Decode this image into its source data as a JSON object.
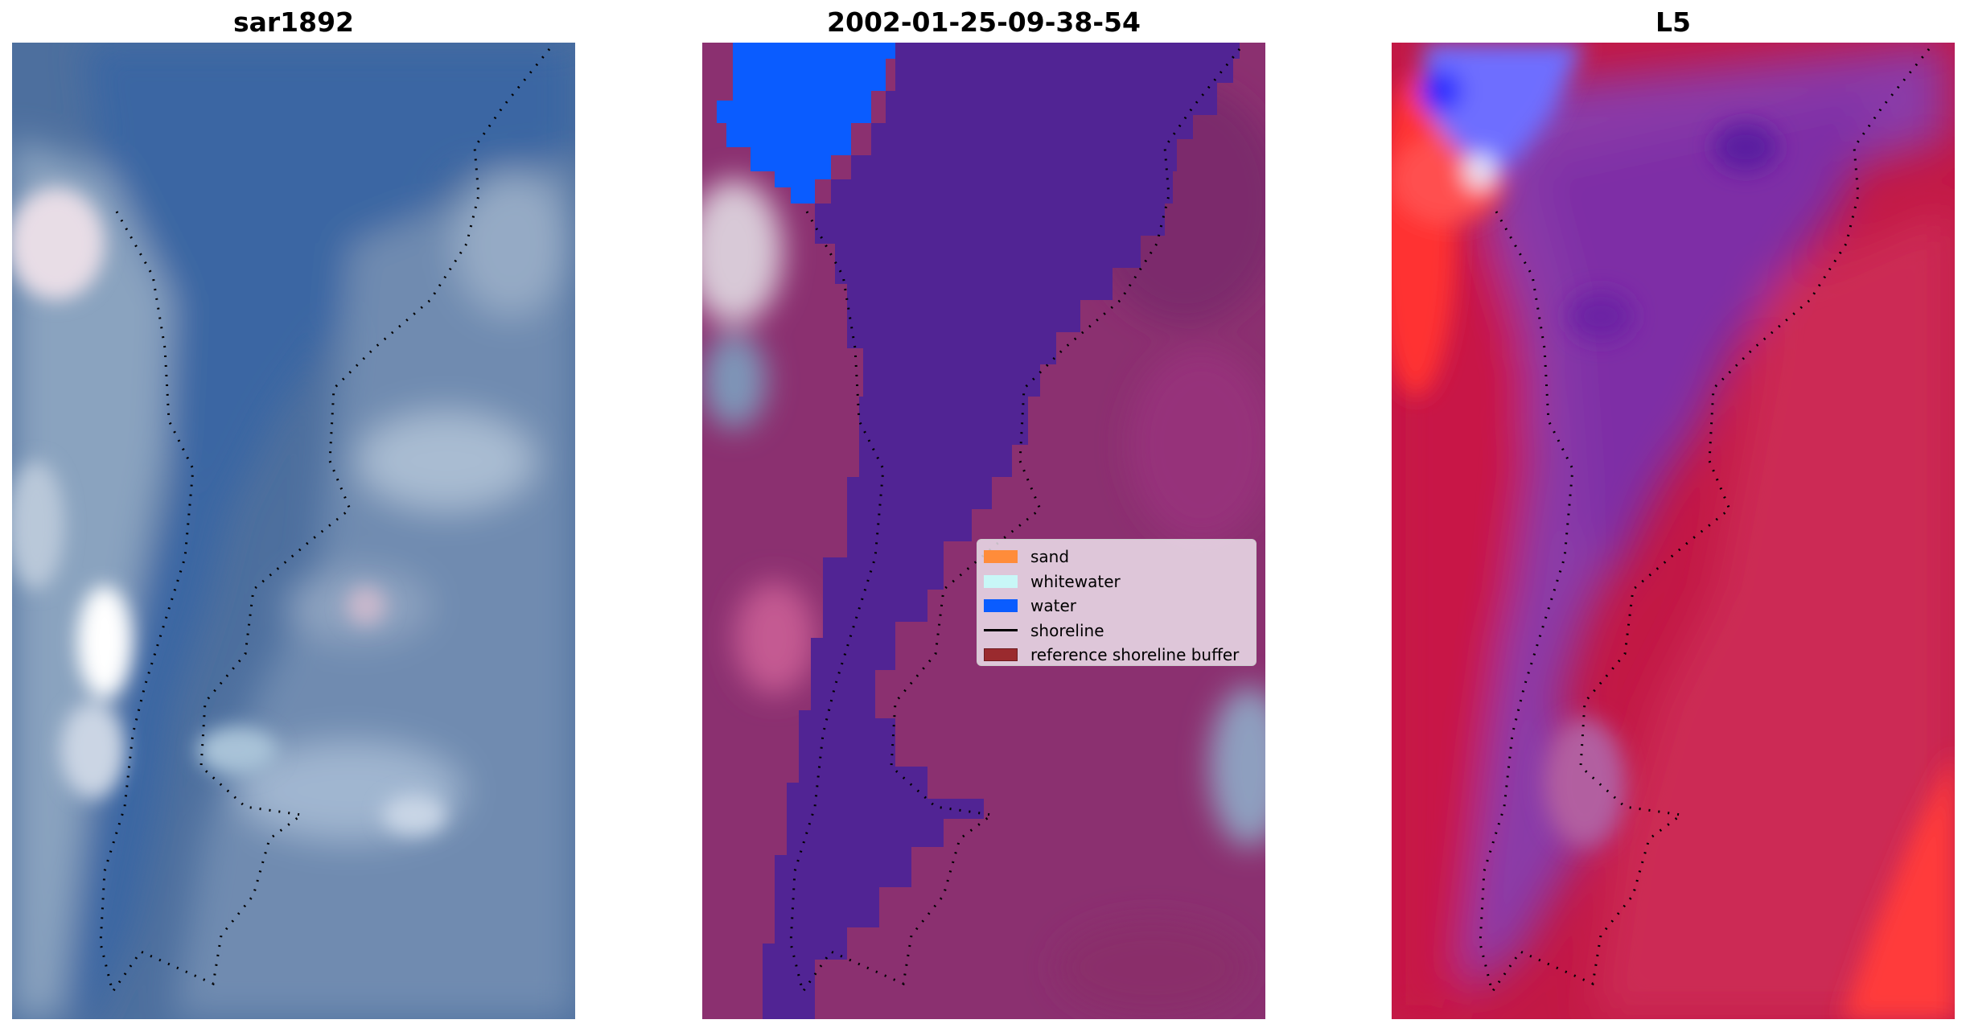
{
  "panels": [
    {
      "title": "sar1892"
    },
    {
      "title": "2002-01-25-09-38-54"
    },
    {
      "title": "L5"
    }
  ],
  "legend": {
    "items": [
      {
        "label": "sand",
        "kind": "patch",
        "color": "#ff8c3a"
      },
      {
        "label": "whitewater",
        "kind": "patch",
        "color": "#c8f7f7"
      },
      {
        "label": "water",
        "kind": "patch",
        "color": "#0a5cff"
      },
      {
        "label": "shoreline",
        "kind": "line",
        "color": "#000000"
      },
      {
        "label": "reference shoreline buffer",
        "kind": "patch",
        "color": "#9a2a2e"
      }
    ]
  },
  "colors": {
    "satellite_water": "#3f6fa8",
    "classified_water_channel": "#512494",
    "classified_land": "#8b3070",
    "classified_water_patch": "#0a5cff",
    "l5_land": "#c21845",
    "l5_water": "#8a3aa8",
    "l5_bright_land": "#ff3b3b",
    "l5_water_patch": "#6a6aff"
  }
}
